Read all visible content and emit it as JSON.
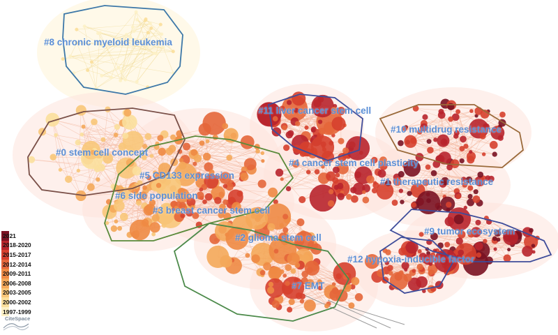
{
  "clusters": [
    {
      "id": "c8",
      "label": "#8 chronic myeloid leukemia"
    },
    {
      "id": "c0",
      "label": "#0 stem cell concept"
    },
    {
      "id": "c5",
      "label": "#5 CD133 expression"
    },
    {
      "id": "c6",
      "label": "#6 side population"
    },
    {
      "id": "c3",
      "label": "#3 breast cancer stem cell"
    },
    {
      "id": "c2",
      "label": "#2 glioma stem cell"
    },
    {
      "id": "c7",
      "label": "#7 EMT"
    },
    {
      "id": "c11",
      "label": "#11 liver cancer stem cell"
    },
    {
      "id": "c4",
      "label": "#4 cancer stem cell plasticity"
    },
    {
      "id": "c10",
      "label": "#10 multidrug resistance"
    },
    {
      "id": "c1",
      "label": "#1 therapeutic resistance"
    },
    {
      "id": "c9",
      "label": "#9 tumor ecosystem"
    },
    {
      "id": "c12",
      "label": "#12 hypoxia-inducible factor"
    }
  ],
  "legend": {
    "items": [
      {
        "label": "2021",
        "color": "#7a1222"
      },
      {
        "label": "2018-2020",
        "color": "#b8242c"
      },
      {
        "label": "2015-2017",
        "color": "#d6402e"
      },
      {
        "label": "2012-2014",
        "color": "#e4663a"
      },
      {
        "label": "2009-2011",
        "color": "#ee8a44"
      },
      {
        "label": "2006-2008",
        "color": "#f4a85a"
      },
      {
        "label": "2003-2005",
        "color": "#f8c679"
      },
      {
        "label": "2000-2002",
        "color": "#fbdf9c"
      },
      {
        "label": "1997-1999",
        "color": "#fdf1c6"
      }
    ]
  },
  "logo": {
    "text": "CiteSpace"
  }
}
